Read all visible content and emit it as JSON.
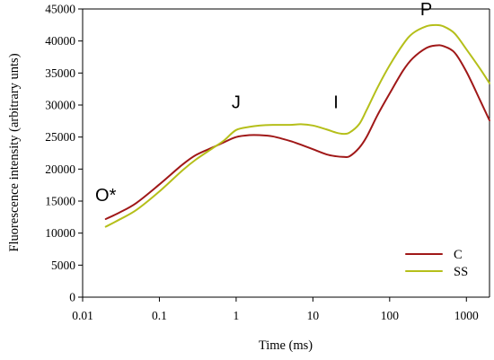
{
  "chart_data": {
    "type": "line",
    "xlabel": "Time (ms)",
    "ylabel": "Fluorescence intensity (arbitrary unts)",
    "xscale": "log",
    "xlim": [
      0.01,
      2000
    ],
    "ylim": [
      0,
      45000
    ],
    "grid": false,
    "legend_position": "bottom-right",
    "x_ticks": [
      {
        "value": 0.01,
        "label": "0.01"
      },
      {
        "value": 0.1,
        "label": "0.1"
      },
      {
        "value": 1,
        "label": "1"
      },
      {
        "value": 10,
        "label": "10"
      },
      {
        "value": 100,
        "label": "100"
      },
      {
        "value": 1000,
        "label": "1000"
      }
    ],
    "y_ticks": [
      {
        "value": 0,
        "label": "0"
      },
      {
        "value": 5000,
        "label": "5000"
      },
      {
        "value": 10000,
        "label": "10000"
      },
      {
        "value": 15000,
        "label": "15000"
      },
      {
        "value": 20000,
        "label": "20000"
      },
      {
        "value": 25000,
        "label": "25000"
      },
      {
        "value": 30000,
        "label": "30000"
      },
      {
        "value": 35000,
        "label": "35000"
      },
      {
        "value": 40000,
        "label": "40000"
      },
      {
        "value": 45000,
        "label": "45000"
      }
    ],
    "annotations": [
      {
        "label": "O*",
        "x": 0.02,
        "y": 15000
      },
      {
        "label": "J",
        "x": 1,
        "y": 29500
      },
      {
        "label": "I",
        "x": 20,
        "y": 29500
      },
      {
        "label": "P",
        "x": 300,
        "y": 44000
      }
    ],
    "series": [
      {
        "name": "C",
        "color": "#a01818",
        "x": [
          0.02,
          0.03,
          0.05,
          0.1,
          0.2,
          0.3,
          0.5,
          0.7,
          1,
          1.5,
          2,
          3,
          5,
          7,
          10,
          15,
          20,
          25,
          30,
          40,
          50,
          70,
          100,
          150,
          200,
          300,
          400,
          500,
          700,
          1000,
          1500,
          2000
        ],
        "y": [
          12200,
          13200,
          14700,
          17600,
          20700,
          22200,
          23400,
          24200,
          25000,
          25300,
          25300,
          25100,
          24400,
          23800,
          23100,
          22300,
          22000,
          21900,
          22000,
          23300,
          25000,
          28500,
          31800,
          35400,
          37300,
          38900,
          39300,
          39200,
          38200,
          35200,
          30800,
          27600
        ]
      },
      {
        "name": "SS",
        "color": "#b5bf1a",
        "x": [
          0.02,
          0.03,
          0.05,
          0.1,
          0.2,
          0.3,
          0.5,
          0.7,
          1,
          1.5,
          2,
          3,
          5,
          7,
          10,
          15,
          20,
          25,
          30,
          40,
          50,
          70,
          100,
          150,
          200,
          300,
          400,
          500,
          700,
          1000,
          1500,
          2000
        ],
        "y": [
          11000,
          12100,
          13600,
          16500,
          19800,
          21500,
          23300,
          24500,
          26100,
          26600,
          26800,
          26900,
          26900,
          27000,
          26800,
          26200,
          25700,
          25500,
          25700,
          27000,
          29200,
          32800,
          36200,
          39500,
          41200,
          42300,
          42500,
          42300,
          41200,
          38700,
          35700,
          33400
        ]
      }
    ]
  }
}
